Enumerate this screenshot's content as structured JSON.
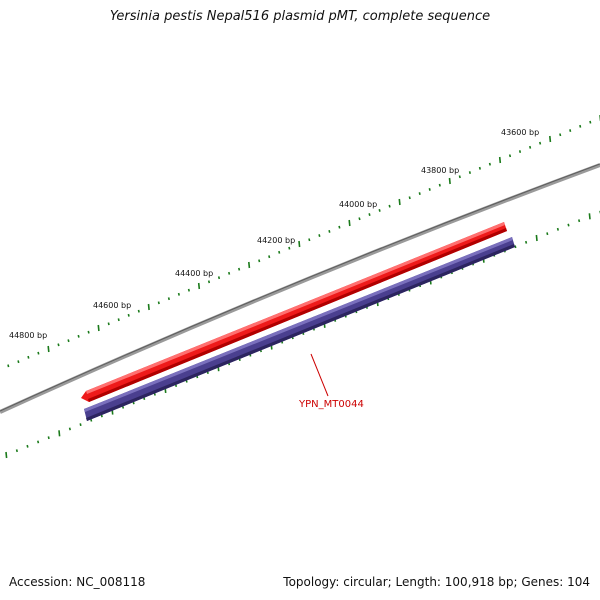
{
  "title": "Yersinia pestis Nepal516 plasmid pMT, complete sequence",
  "accession": "Accession: NC_008118",
  "summary": "Topology: circular; Length: 100,918 bp; Genes: 104",
  "ticks": [
    {
      "label": "43600 bp",
      "bp": 43600
    },
    {
      "label": "43800 bp",
      "bp": 43800
    },
    {
      "label": "44000 bp",
      "bp": 44000
    },
    {
      "label": "44200 bp",
      "bp": 44200
    },
    {
      "label": "44400 bp",
      "bp": 44400
    },
    {
      "label": "44600 bp",
      "bp": 44600
    },
    {
      "label": "44800 bp",
      "bp": 44800
    }
  ],
  "gene": {
    "label": "YPN_MT0044",
    "strand_color": "#ee0000"
  },
  "colors": {
    "backbone": "#808080",
    "forward_feature": "#ee0000",
    "reverse_feature": "#4a3f8f",
    "ticks": "#1a7a1a",
    "gene_label": "#cc0000"
  }
}
